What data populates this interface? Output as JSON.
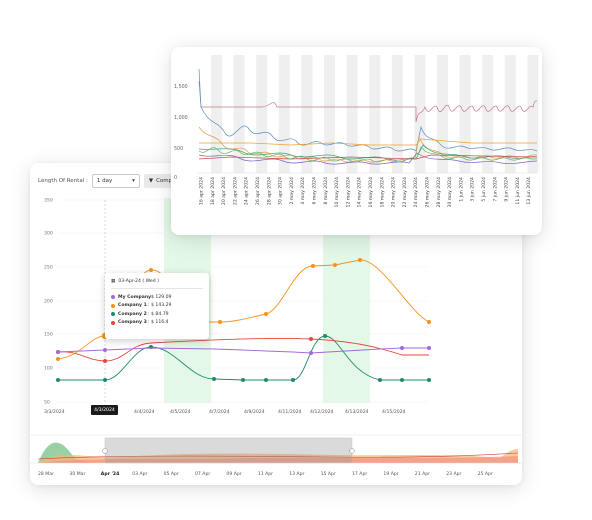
{
  "toolbar": {
    "length_label": "Length Of Rental :",
    "length_value": "1 day",
    "compare_label": "Compa"
  },
  "main_chart": {
    "y_ticks": [
      "350",
      "300",
      "250",
      "200",
      "150",
      "100",
      "50"
    ],
    "x_ticks": [
      "3/3/2024",
      "4/3/2024",
      "4/4/2024",
      "4/5/2024",
      "4/7/2024",
      "4/9/2024",
      "4/11/2024",
      "4/12/2024",
      "4/13/2024",
      "4/15/2024"
    ],
    "highlighted_x_label": "4/3/2024"
  },
  "tooltip": {
    "date": "03-Apr-24 ( Wed )",
    "rows": [
      {
        "name": "My Company",
        "value": ": $ 129.09",
        "color": "#a569d6"
      },
      {
        "name": "Company 1",
        "value": ": $ 143.29",
        "color": "#f5921f"
      },
      {
        "name": "Company 2",
        "value": ": $ 84.79",
        "color": "#1f8a6c"
      },
      {
        "name": "Company 3",
        "value": ": $ 116.4",
        "color": "#e6483d"
      }
    ]
  },
  "navigator": {
    "labels": [
      "28 Mar",
      "30 Mar",
      "Apr '24",
      "03 Apr",
      "05 Apr",
      "07 Apr",
      "09 Apr",
      "11 Apr",
      "13 Apr",
      "15 Apr",
      "17 Apr",
      "19 Apr",
      "21 Apr",
      "23 Apr",
      "25 Apr"
    ]
  },
  "inset_chart": {
    "y_ticks": [
      "1,500",
      "1,000",
      "500",
      "0"
    ],
    "x_ticks": [
      "16 apr 2024",
      "18 apr 2024",
      "20 apr 2024",
      "22 apr 2024",
      "24 apr 2024",
      "26 apr 2024",
      "28 apr 2024",
      "30 apr 2024",
      "2 may 2024",
      "4 may 2024",
      "6 may 2024",
      "8 may 2024",
      "10 may 2024",
      "12 may 2024",
      "14 may 2024",
      "16 may 2024",
      "18 may 2024",
      "20 may 2024",
      "22 may 2024",
      "24 may 2024",
      "26 may 2024",
      "28 may 2024",
      "30 may 2024",
      "1 jun 2024",
      "3 jun 2024",
      "5 jun 2024",
      "7 jun 2024",
      "9 jun 2024",
      "11 jun 2024",
      "13 jun 2024"
    ]
  },
  "colors": {
    "my_company": "#a569d6",
    "company_1": "#f5921f",
    "company_2": "#1f8a6c",
    "company_3": "#e6483d",
    "highlight_band": "#e3f8e7",
    "inset_band": "#efefef"
  }
}
